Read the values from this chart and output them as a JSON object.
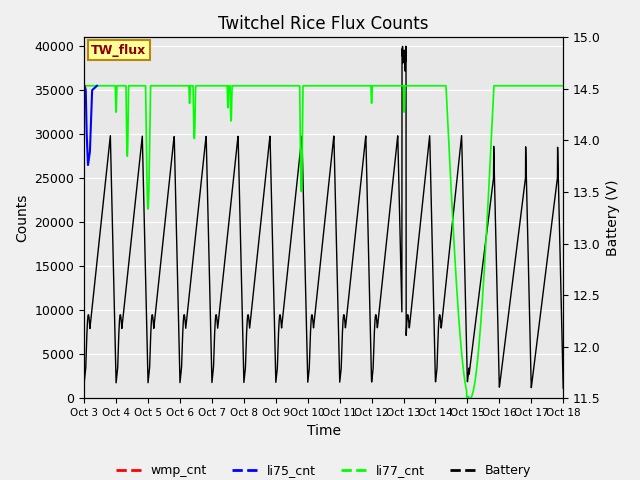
{
  "title": "Twitchel Rice Flux Counts",
  "xlabel": "Time",
  "ylabel_left": "Counts",
  "ylabel_right": "Battery (V)",
  "xlim": [
    0,
    15
  ],
  "ylim_left": [
    0,
    41000
  ],
  "ylim_right": [
    11.5,
    15.0
  ],
  "xtick_labels": [
    "Oct 3",
    "Oct 4",
    "Oct 5",
    "Oct 6",
    "Oct 7",
    "Oct 8",
    "Oct 9",
    "Oct 10",
    "Oct 11",
    "Oct 12",
    "Oct 13",
    "Oct 14",
    "Oct 15",
    "Oct 16",
    "Oct 17",
    "Oct 18"
  ],
  "xtick_positions": [
    0,
    1,
    2,
    3,
    4,
    5,
    6,
    7,
    8,
    9,
    10,
    11,
    12,
    13,
    14,
    15
  ],
  "ytick_left": [
    0,
    5000,
    10000,
    15000,
    20000,
    25000,
    30000,
    35000,
    40000
  ],
  "ytick_right": [
    11.5,
    12.0,
    12.5,
    13.0,
    13.5,
    14.0,
    14.5,
    15.0
  ],
  "bg_color": "#f0f0f0",
  "plot_bg_color": "#e8e8e8",
  "grid_color": "#ffffff",
  "annotation_box_text": "TW_flux",
  "annotation_box_facecolor": "#ffff99",
  "annotation_box_edgecolor": "#b8860b",
  "li77_base": 35500,
  "battery_volt_min": 11.5,
  "battery_volt_max": 15.0,
  "counts_min": 0,
  "counts_max": 41000
}
